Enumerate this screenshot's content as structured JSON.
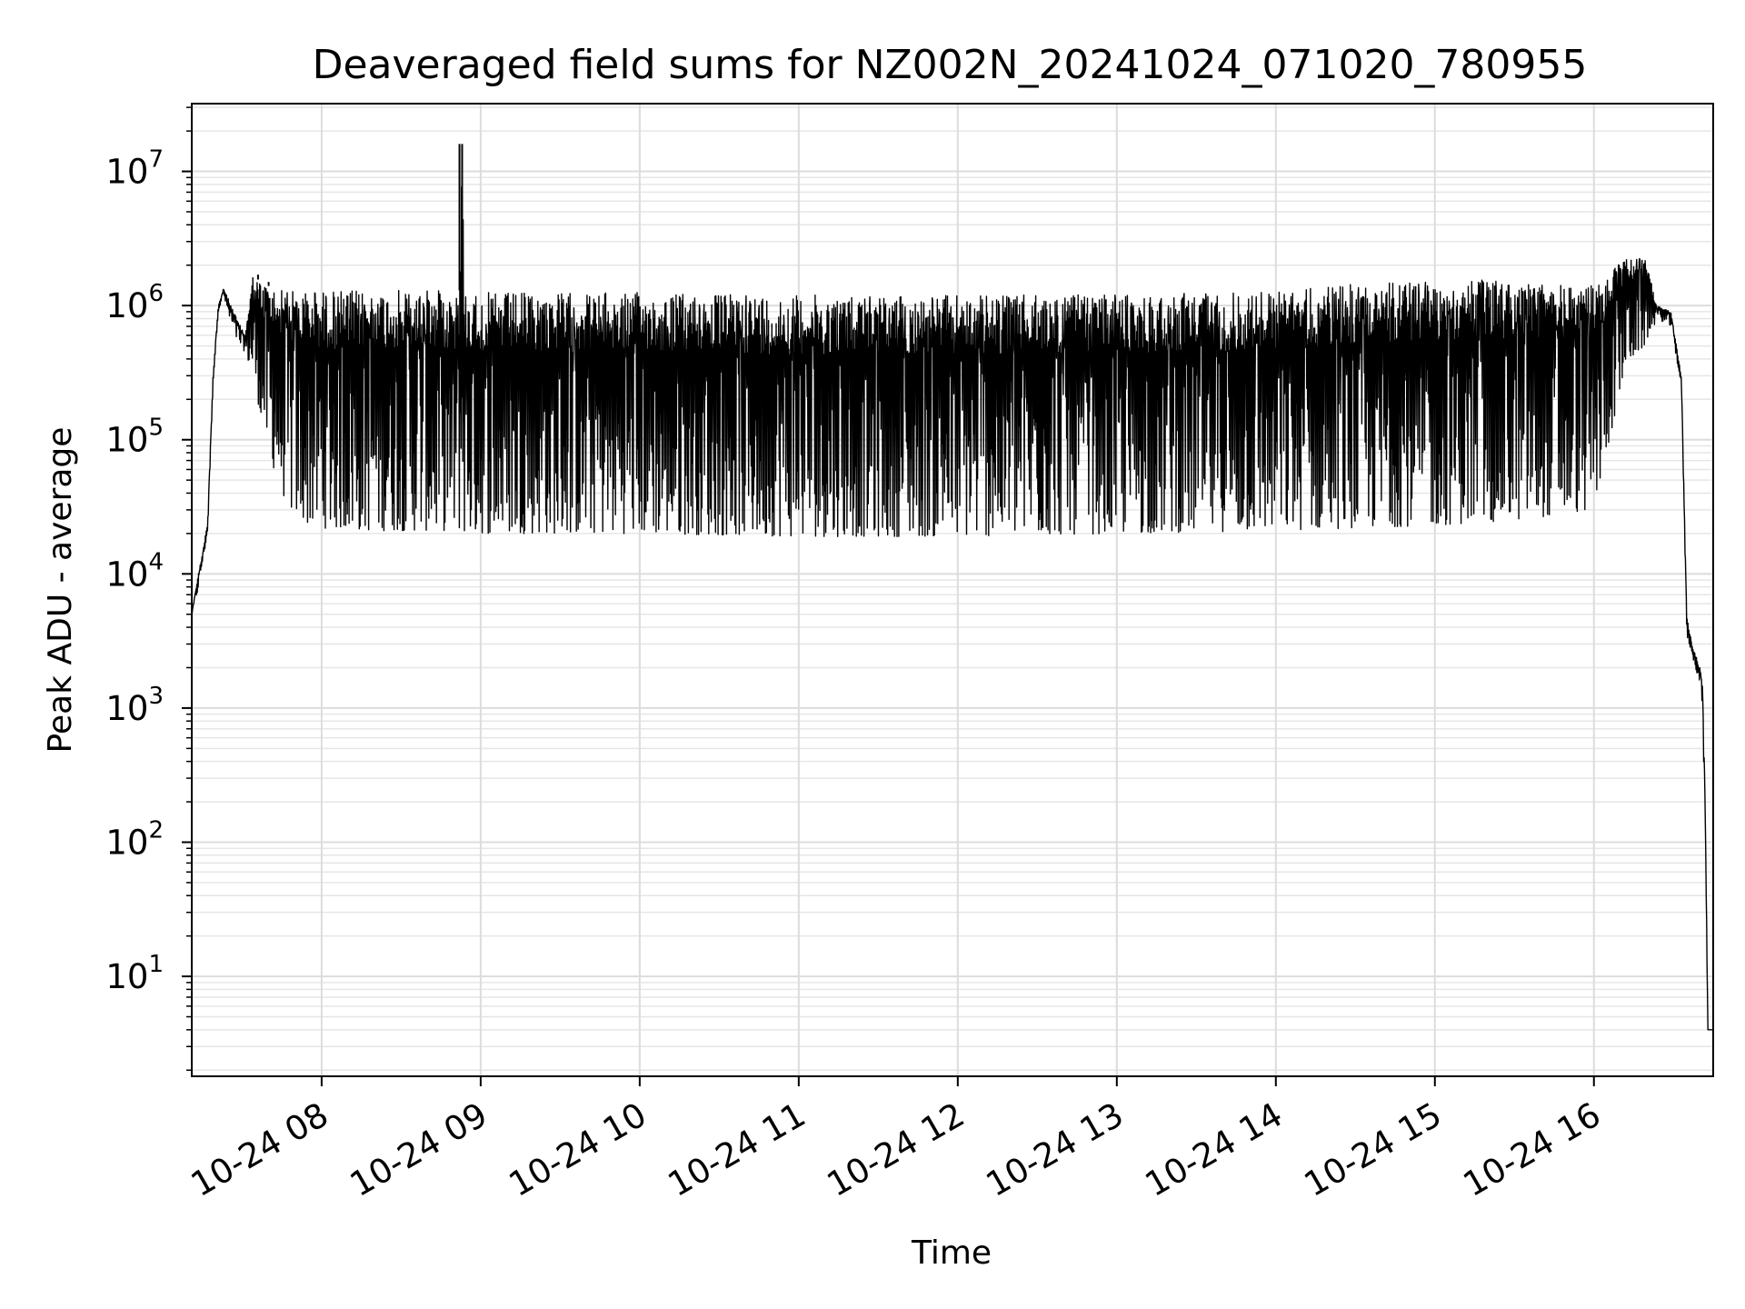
{
  "chart_data": {
    "type": "line",
    "title": "Deaveraged field sums for NZ002N_20241024_071020_780955",
    "xlabel": "Time",
    "ylabel": "Peak ADU - average",
    "yscale": "log",
    "ylim": [
      1.8,
      32000000
    ],
    "xlim": [
      "2024-10-24 07:11",
      "2024-10-24 16:45"
    ],
    "grid": true,
    "line_color": "#000000",
    "x_ticks": [
      "2024-10-24 08:00",
      "2024-10-24 09:00",
      "2024-10-24 10:00",
      "2024-10-24 11:00",
      "2024-10-24 12:00",
      "2024-10-24 13:00",
      "2024-10-24 14:00",
      "2024-10-24 15:00",
      "2024-10-24 16:00"
    ],
    "x_tick_labels": [
      "10-24 08",
      "10-24 09",
      "10-24 10",
      "10-24 11",
      "10-24 12",
      "10-24 13",
      "10-24 14",
      "10-24 15",
      "10-24 16"
    ],
    "y_ticks": [
      {
        "value": 10,
        "base": "10",
        "exp": "1"
      },
      {
        "value": 100,
        "base": "10",
        "exp": "2"
      },
      {
        "value": 1000,
        "base": "10",
        "exp": "3"
      },
      {
        "value": 10000,
        "base": "10",
        "exp": "4"
      },
      {
        "value": 100000,
        "base": "10",
        "exp": "5"
      },
      {
        "value": 1000000,
        "base": "10",
        "exp": "6"
      },
      {
        "value": 10000000,
        "base": "10",
        "exp": "7"
      }
    ],
    "envelope": {
      "x": [
        "2024-10-24 07:11",
        "2024-10-24 07:13",
        "2024-10-24 07:15",
        "2024-10-24 07:17",
        "2024-10-24 07:19",
        "2024-10-24 07:21",
        "2024-10-24 07:23",
        "2024-10-24 07:25",
        "2024-10-24 07:28",
        "2024-10-24 07:31",
        "2024-10-24 07:34",
        "2024-10-24 07:37",
        "2024-10-24 07:40",
        "2024-10-24 07:44",
        "2024-10-24 07:48",
        "2024-10-24 07:52",
        "2024-10-24 07:56",
        "2024-10-24 08:00",
        "2024-10-24 08:15",
        "2024-10-24 08:30",
        "2024-10-24 08:52",
        "2024-10-24 08:53",
        "2024-10-24 08:54",
        "2024-10-24 09:00",
        "2024-10-24 10:00",
        "2024-10-24 11:00",
        "2024-10-24 12:00",
        "2024-10-24 13:00",
        "2024-10-24 14:00",
        "2024-10-24 14:30",
        "2024-10-24 15:00",
        "2024-10-24 15:30",
        "2024-10-24 16:00",
        "2024-10-24 16:12",
        "2024-10-24 16:19",
        "2024-10-24 16:24",
        "2024-10-24 16:29",
        "2024-10-24 16:33",
        "2024-10-24 16:35",
        "2024-10-24 16:37",
        "2024-10-24 16:40",
        "2024-10-24 16:41",
        "2024-10-24 16:42",
        "2024-10-24 16:43",
        "2024-10-24 16:45"
      ],
      "high": [
        5000,
        9000,
        14000,
        25000,
        300000,
        1000000,
        1350000,
        1100000,
        800000,
        600000,
        1700000,
        1500000,
        1400000,
        1350000,
        1300000,
        1300000,
        1300000,
        1300000,
        1300000,
        1300000,
        1300000,
        16000000,
        1300000,
        1250000,
        1250000,
        1200000,
        1200000,
        1200000,
        1300000,
        1450000,
        1550000,
        1550000,
        1400000,
        2400000,
        2300000,
        1000000,
        900000,
        300000,
        5000,
        3000,
        2000,
        1500,
        200,
        4,
        4
      ],
      "low": [
        5000,
        7000,
        12000,
        20000,
        250000,
        900000,
        1200000,
        800000,
        550000,
        450000,
        300000,
        150000,
        80000,
        45000,
        30000,
        25000,
        23000,
        22000,
        21000,
        21000,
        21000,
        21000,
        20000,
        20000,
        20000,
        19000,
        19000,
        20000,
        21000,
        22000,
        23000,
        25000,
        30000,
        350000,
        500000,
        800000,
        700000,
        250000,
        3500,
        2500,
        1500,
        1000,
        100,
        4,
        4
      ]
    },
    "spikes": [
      {
        "x": "2024-10-24 07:36",
        "value": 1700000
      },
      {
        "x": "2024-10-24 07:40",
        "value": 1500000
      },
      {
        "x": "2024-10-24 08:52",
        "value": 16000000
      },
      {
        "x": "2024-10-24 08:53",
        "value": 3700000
      },
      {
        "x": "2024-10-24 16:12",
        "value": 2400000
      },
      {
        "x": "2024-10-24 16:19",
        "value": 2300000
      }
    ]
  }
}
